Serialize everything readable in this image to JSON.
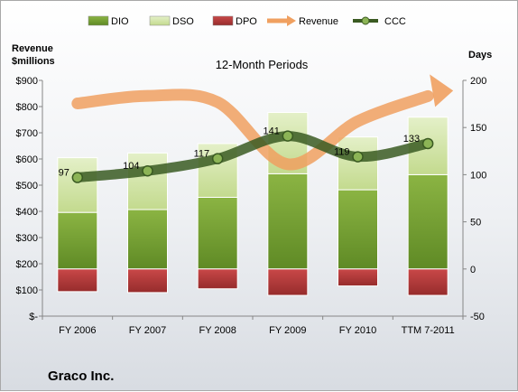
{
  "chart_data": {
    "type": "bar",
    "title": "12-Month Periods",
    "company": "Graco Inc.",
    "ylabel_left": [
      "Revenue",
      "$millions"
    ],
    "ylabel_right": "Days",
    "categories": [
      "FY 2006",
      "FY 2007",
      "FY 2008",
      "FY 2009",
      "FY 2010",
      "TTM 7-2011"
    ],
    "left_axis": {
      "min": 0,
      "max": 900,
      "step": 100,
      "tick_labels": [
        "$-",
        "$100",
        "$200",
        "$300",
        "$400",
        "$500",
        "$600",
        "$700",
        "$800",
        "$900"
      ]
    },
    "right_axis": {
      "min": -50,
      "max": 200,
      "step": 50,
      "tick_labels": [
        "-50",
        "0",
        "50",
        "100",
        "150",
        "200"
      ]
    },
    "series": [
      {
        "name": "DIO",
        "axis": "days",
        "kind": "bar-stack",
        "color": "#6a9a2c",
        "values": [
          60,
          63,
          76,
          101,
          84,
          100
        ]
      },
      {
        "name": "DSO",
        "axis": "days",
        "kind": "bar-stack",
        "color": "#cfe3a4",
        "values": [
          58,
          60,
          57,
          65,
          56,
          61
        ]
      },
      {
        "name": "DPO",
        "axis": "days",
        "kind": "bar-negative",
        "color": "#b23a3a",
        "values": [
          -24,
          -25,
          -21,
          -28,
          -18,
          -28
        ]
      },
      {
        "name": "Revenue",
        "axis": "revenue",
        "kind": "line",
        "color": "#f0a060",
        "values": [
          812,
          841,
          817,
          580,
          744,
          840
        ]
      },
      {
        "name": "CCC",
        "axis": "days",
        "kind": "line-markers",
        "color": "#3a5a22",
        "values": [
          97,
          104,
          117,
          141,
          119,
          133
        ]
      }
    ],
    "ccc_labels": [
      "97",
      "104",
      "117",
      "141",
      "119",
      "133"
    ],
    "legend_placement": "top",
    "grid": false
  }
}
